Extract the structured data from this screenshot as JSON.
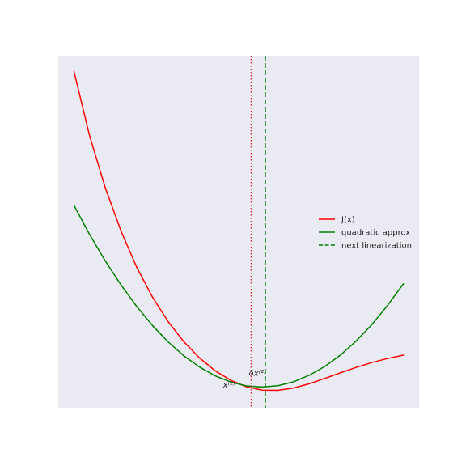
{
  "chart_data": {
    "type": "line",
    "title": "",
    "xlabel": "",
    "ylabel": "",
    "grid": false,
    "axes_visible": false,
    "xlim": [
      -3.05,
      1.55
    ],
    "ylim": [
      -0.09,
      1.73
    ],
    "legend_position": "center-right",
    "series": [
      {
        "name": "J(x)",
        "color": "#ff0000",
        "style": "solid",
        "x": [
          -2.85,
          -2.65,
          -2.45,
          -2.25,
          -2.05,
          -1.85,
          -1.65,
          -1.45,
          -1.25,
          -1.05,
          -0.85,
          -0.65,
          -0.45,
          -0.25,
          -0.05,
          0.15,
          0.35,
          0.55,
          0.75,
          0.95,
          1.15,
          1.35
        ],
        "y": [
          1.65,
          1.316,
          1.047,
          0.824,
          0.637,
          0.483,
          0.356,
          0.252,
          0.168,
          0.101,
          0.052,
          0.018,
          0.001,
          0.0,
          0.012,
          0.034,
          0.062,
          0.091,
          0.119,
          0.144,
          0.165,
          0.182
        ]
      },
      {
        "name": "quadratic approx",
        "color": "#008000",
        "style": "solid",
        "x": [
          -2.85,
          -2.65,
          -2.45,
          -2.25,
          -2.05,
          -1.85,
          -1.65,
          -1.45,
          -1.25,
          -1.05,
          -0.85,
          -0.65,
          -0.45,
          -0.25,
          -0.05,
          0.15,
          0.35,
          0.55,
          0.75,
          0.95,
          1.15,
          1.35
        ],
        "y": [
          0.957,
          0.806,
          0.669,
          0.545,
          0.434,
          0.336,
          0.251,
          0.179,
          0.121,
          0.075,
          0.043,
          0.023,
          0.017,
          0.024,
          0.044,
          0.078,
          0.124,
          0.183,
          0.256,
          0.341,
          0.44,
          0.551
        ]
      }
    ],
    "vlines": [
      {
        "x": -0.59,
        "color": "#d62728",
        "style": "dotted"
      },
      {
        "name": "next linearization",
        "x": -0.41,
        "color": "#008000",
        "style": "dashed"
      }
    ],
    "annotations": [
      {
        "text": "x⁽²⁾",
        "x": -0.95,
        "y": 0.015
      },
      {
        "text": "δx⁽²⁾",
        "x": -0.62,
        "y": 0.075
      }
    ]
  },
  "colors": {
    "axes_background": "#eaeaf2",
    "figure_background": "#ffffff"
  },
  "legend": {
    "items": [
      {
        "label": "J(x)",
        "color": "#ff0000",
        "style": "solid"
      },
      {
        "label": "quadratic approx",
        "color": "#008000",
        "style": "solid"
      },
      {
        "label": "next linearization",
        "color": "#008000",
        "style": "dashed"
      }
    ]
  }
}
